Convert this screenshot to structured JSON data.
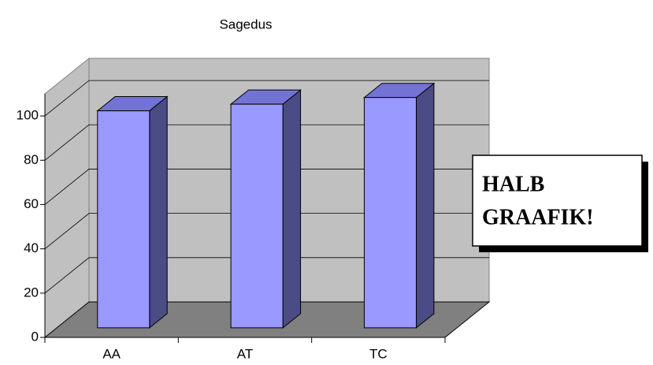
{
  "chart_data": {
    "type": "bar3d",
    "title": "Sagedus",
    "categories": [
      "AA",
      "AT",
      "TC"
    ],
    "values": [
      98,
      101,
      104
    ],
    "color": "#9999ff",
    "top_color": "#7373d6",
    "side_color": "#4b4b85",
    "ylim": [
      0,
      110
    ],
    "yticks": [
      0,
      20,
      40,
      60,
      80,
      100
    ],
    "grid": true,
    "annotation": [
      "HALB",
      "GRAAFIK!"
    ]
  }
}
